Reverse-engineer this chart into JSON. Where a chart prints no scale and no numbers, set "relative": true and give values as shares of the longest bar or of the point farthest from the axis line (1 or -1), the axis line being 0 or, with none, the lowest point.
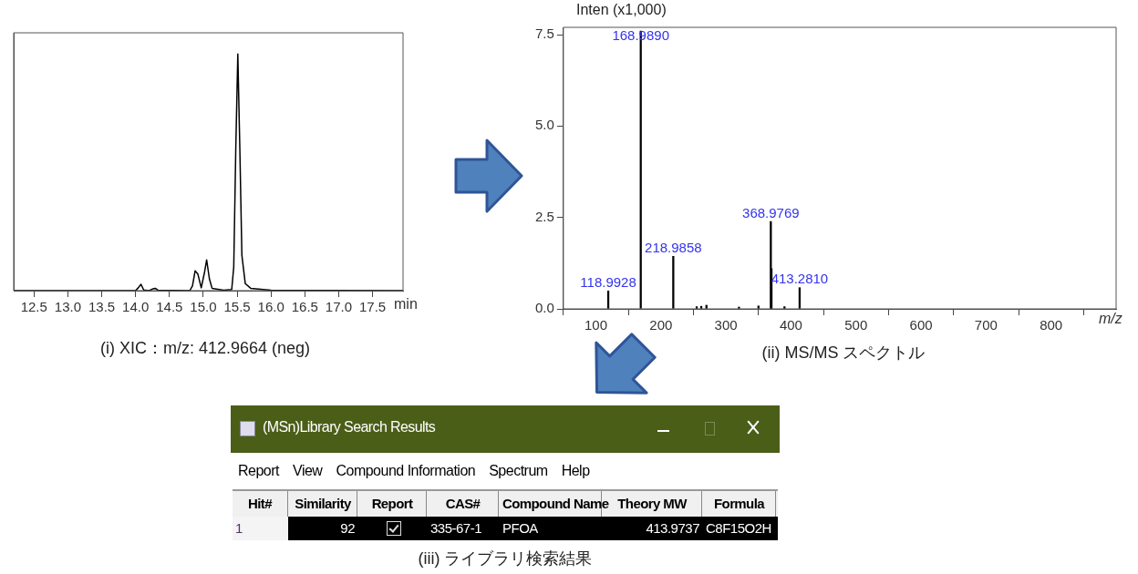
{
  "chart_data": [
    {
      "type": "line",
      "relative": true,
      "xlabel": "min",
      "annotations": [
        "(i) XIC：m/z: 412.9664 (neg)"
      ],
      "xlim": [
        12.2,
        17.95
      ],
      "xticks": [
        12.5,
        {
          "value": 13,
          "label": "13.0"
        },
        13.5,
        {
          "value": 14,
          "label": "14.0"
        },
        14.5,
        {
          "value": 15,
          "label": "15.0"
        },
        15.5,
        {
          "value": 16,
          "label": "16.0"
        },
        16.5,
        {
          "value": 17,
          "label": "17.0"
        },
        17.5
      ],
      "marker": "none",
      "series": [
        {
          "color": "#000000",
          "x": [
            12.2,
            14.0,
            14.04,
            14.08,
            14.12,
            14.2,
            14.26,
            14.29,
            14.33,
            14.8,
            14.84,
            14.88,
            14.92,
            14.97,
            15.02,
            15.05,
            15.09,
            15.13,
            15.3,
            15.42,
            15.45,
            15.48,
            15.51,
            15.54,
            15.57,
            15.62,
            15.7,
            16.0,
            17.95
          ],
          "values": [
            0,
            0,
            0.012,
            0.027,
            0.003,
            0,
            0.008,
            0.01,
            0.002,
            0,
            0.02,
            0.084,
            0.07,
            0.012,
            0.08,
            0.13,
            0.05,
            0.01,
            0.002,
            0.005,
            0.1,
            0.6,
            1,
            0.6,
            0.15,
            0.03,
            0.01,
            0.002,
            0
          ]
        }
      ]
    },
    {
      "type": "bar",
      "xlabel": "m/z",
      "ylabel": "Inten (x1,000)",
      "annotations": [
        "(ii) MS/MS スペクトル",
        {
          "text": "118.9928",
          "x": 118.9928,
          "y": 0.49
        },
        {
          "text": "168.9890",
          "x": 168.989,
          "y": 7.6
        },
        {
          "text": "218.9858",
          "x": 218.9858,
          "y": 1.44
        },
        {
          "text": "368.9769",
          "x": 368.9769,
          "y": 2.39
        },
        {
          "text": "413.2810",
          "x": 413.281,
          "y": 0.58
        }
      ],
      "xlim": [
        50,
        900
      ],
      "xticks": [
        100,
        200,
        300,
        400,
        500,
        600,
        700,
        800
      ],
      "ylim": [
        0,
        7.7
      ],
      "yticks": [
        {
          "value": 0,
          "label": "0.0"
        },
        2.5,
        {
          "value": 5,
          "label": "5.0"
        },
        7.5
      ],
      "series": [
        {
          "color": "#000000",
          "x": [
            118.9928,
            168.989,
            218.9858,
            255,
            262,
            270,
            320,
            350,
            368.9769,
            370,
            390,
            413.281
          ],
          "values": [
            0.49,
            7.6,
            1.44,
            0.06,
            0.07,
            0.1,
            0.05,
            0.08,
            2.39,
            1.1,
            0.06,
            0.58
          ]
        }
      ]
    },
    {
      "type": "other",
      "title": "(MSn)Library Search Results",
      "annotations": [
        "Report",
        "View",
        "Compound Information",
        "Spectrum",
        "Help",
        "(iii)  ライブラリ検索結果"
      ],
      "categories": [
        "Hit#",
        "Similarity",
        "Report",
        "CAS#",
        "Compound Name",
        "Theory MW",
        "Formula"
      ],
      "cell_labels": [
        [
          "1",
          "92",
          null,
          "335-67-1",
          "PFOA",
          "413.9737",
          "C8F15O2H"
        ]
      ]
    }
  ]
}
